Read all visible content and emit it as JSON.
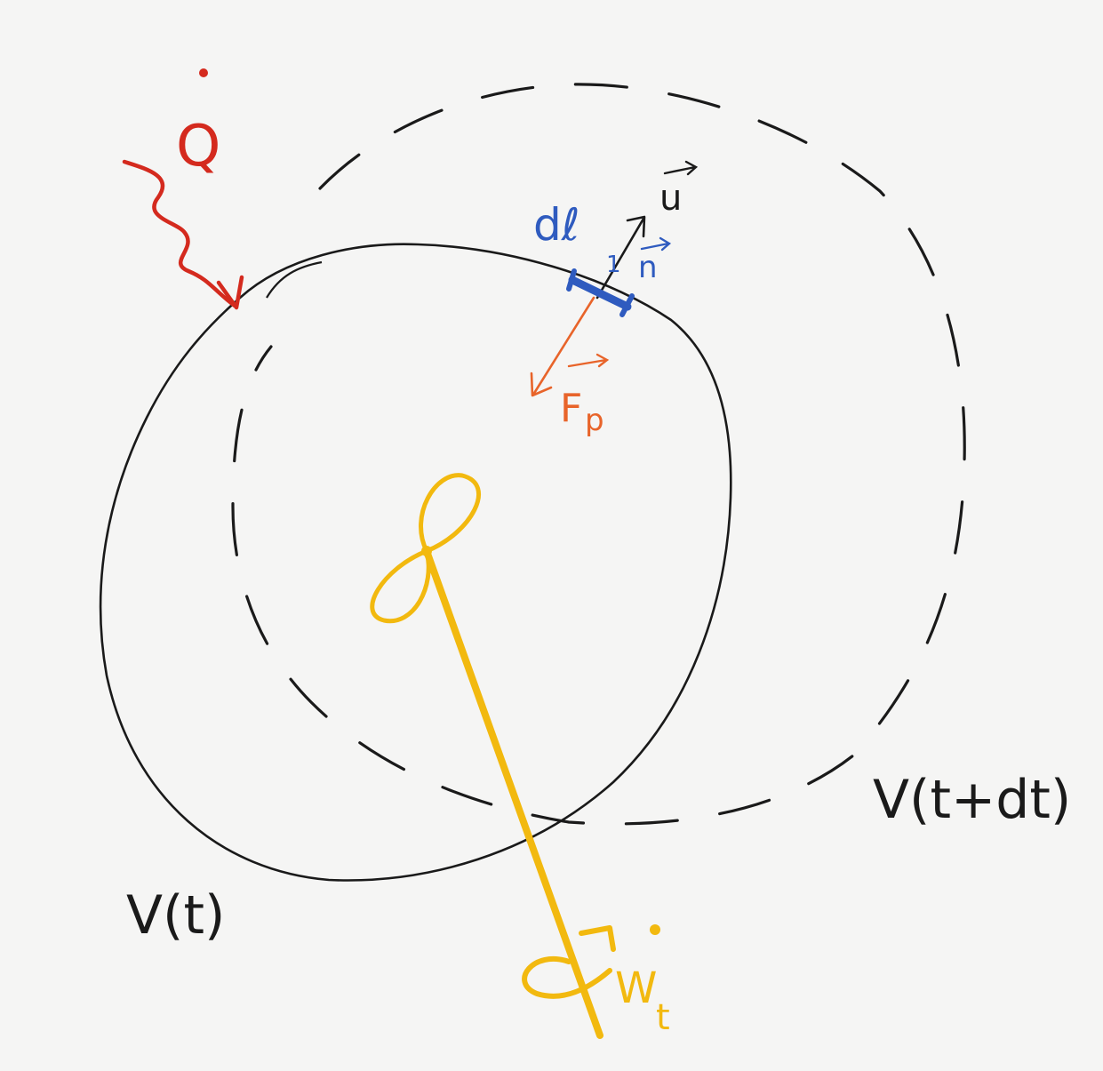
{
  "labels": {
    "heat": "Q",
    "surface_element": "dℓ",
    "velocity": "u",
    "normal": "n",
    "normal_prefix": "1",
    "pressure_force": "F",
    "pressure_force_sub": "p",
    "volume_t": "V(t)",
    "volume_t_dt": "V(t+dt)",
    "work": "W",
    "work_sub": "t"
  },
  "colors": {
    "ink": "#1a1a1a",
    "heat": "#d42a1e",
    "surface": "#2f5bbf",
    "pressure": "#e8642a",
    "work": "#f2b90f"
  },
  "icons": {
    "heat_arrow": "wavy-arrow",
    "propeller": "figure-eight-propeller",
    "rotation": "curl-arrow"
  }
}
